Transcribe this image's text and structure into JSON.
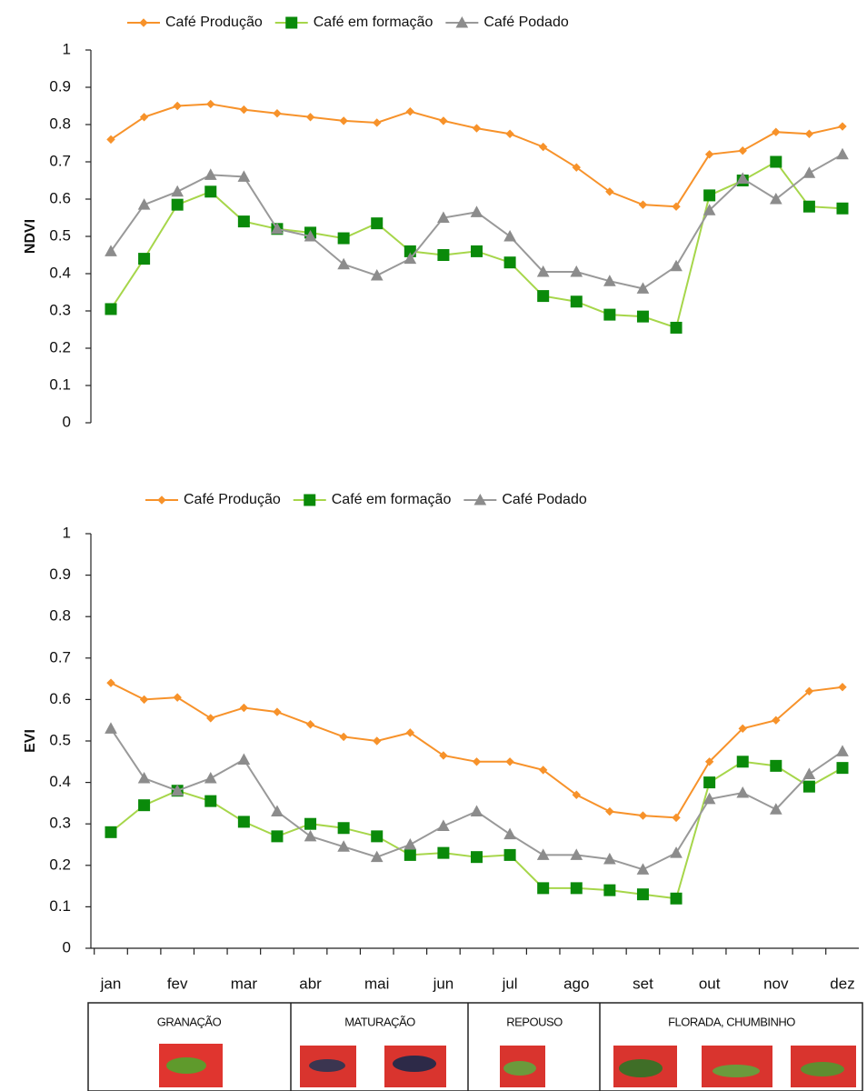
{
  "chart_data": [
    {
      "type": "line",
      "y_label": "NDVI",
      "categories": [
        null,
        null,
        null,
        null,
        null,
        null,
        null,
        null,
        null,
        null,
        null,
        null,
        null,
        null,
        null,
        null,
        null,
        null,
        null,
        null,
        null,
        null,
        null
      ],
      "series": [
        {
          "name": "Café Produção",
          "color": "#f7922a",
          "marker": "diamond",
          "marker_color": "#f7922a",
          "values": [
            0.76,
            0.82,
            0.85,
            0.855,
            0.84,
            0.83,
            0.82,
            0.81,
            0.805,
            0.835,
            0.81,
            0.79,
            0.775,
            0.74,
            0.685,
            0.62,
            0.585,
            0.58,
            0.72,
            0.73,
            0.78,
            0.775,
            0.795
          ]
        },
        {
          "name": "Café em formação",
          "color": "#a6d64a",
          "marker": "square",
          "marker_color": "#0a8a0a",
          "values": [
            0.305,
            0.44,
            0.585,
            0.62,
            0.54,
            0.52,
            0.51,
            0.495,
            0.535,
            0.46,
            0.45,
            0.46,
            0.43,
            0.34,
            0.325,
            0.29,
            0.285,
            0.255,
            0.61,
            0.65,
            0.7,
            0.58,
            0.575
          ]
        },
        {
          "name": "Café Podado",
          "color": "#999999",
          "marker": "triangle",
          "marker_color": "#8c8c8c",
          "values": [
            0.46,
            0.585,
            0.62,
            0.665,
            0.66,
            0.52,
            0.5,
            0.425,
            0.395,
            0.44,
            0.55,
            0.565,
            0.5,
            0.405,
            0.405,
            0.38,
            0.36,
            0.42,
            0.57,
            0.655,
            0.6,
            0.67,
            0.72
          ]
        }
      ],
      "ylim": [
        0,
        1
      ],
      "yticks": [
        0,
        0.1,
        0.2,
        0.3,
        0.4,
        0.5,
        0.6,
        0.7,
        0.8,
        0.9,
        1
      ]
    },
    {
      "type": "line",
      "y_label": "EVI",
      "categories": [
        "jan",
        null,
        "fev",
        null,
        "mar",
        null,
        "abr",
        null,
        "mai",
        null,
        "jun",
        null,
        "jul",
        null,
        "ago",
        null,
        "set",
        null,
        "out",
        null,
        "nov",
        null,
        "dez"
      ],
      "series": [
        {
          "name": "Café Produção",
          "color": "#f7922a",
          "marker": "diamond",
          "marker_color": "#f7922a",
          "values": [
            0.64,
            0.6,
            0.605,
            0.555,
            0.58,
            0.57,
            0.54,
            0.51,
            0.5,
            0.52,
            0.465,
            0.45,
            0.45,
            0.43,
            0.37,
            0.33,
            0.32,
            0.315,
            0.45,
            0.53,
            0.55,
            0.62,
            0.63
          ]
        },
        {
          "name": "Café em formação",
          "color": "#a6d64a",
          "marker": "square",
          "marker_color": "#0a8a0a",
          "values": [
            0.28,
            0.345,
            0.38,
            0.355,
            0.305,
            0.27,
            0.3,
            0.29,
            0.27,
            0.225,
            0.23,
            0.22,
            0.225,
            0.145,
            0.145,
            0.14,
            0.13,
            0.12,
            0.4,
            0.45,
            0.44,
            0.39,
            0.435
          ]
        },
        {
          "name": "Café Podado",
          "color": "#999999",
          "marker": "triangle",
          "marker_color": "#8c8c8c",
          "values": [
            0.53,
            0.41,
            0.38,
            0.41,
            0.455,
            0.33,
            0.27,
            0.245,
            0.22,
            0.25,
            0.295,
            0.33,
            0.275,
            0.225,
            0.225,
            0.215,
            0.19,
            0.23,
            0.36,
            0.375,
            0.335,
            0.42,
            0.475
          ]
        }
      ],
      "ylim": [
        0,
        1
      ],
      "yticks": [
        0,
        0.1,
        0.2,
        0.3,
        0.4,
        0.5,
        0.6,
        0.7,
        0.8,
        0.9,
        1
      ]
    }
  ],
  "phenology": {
    "stages": [
      "GRANAÇÃO",
      "MATURAÇÃO",
      "REPOUSO",
      "FLORADA, CHUMBINHO"
    ]
  }
}
